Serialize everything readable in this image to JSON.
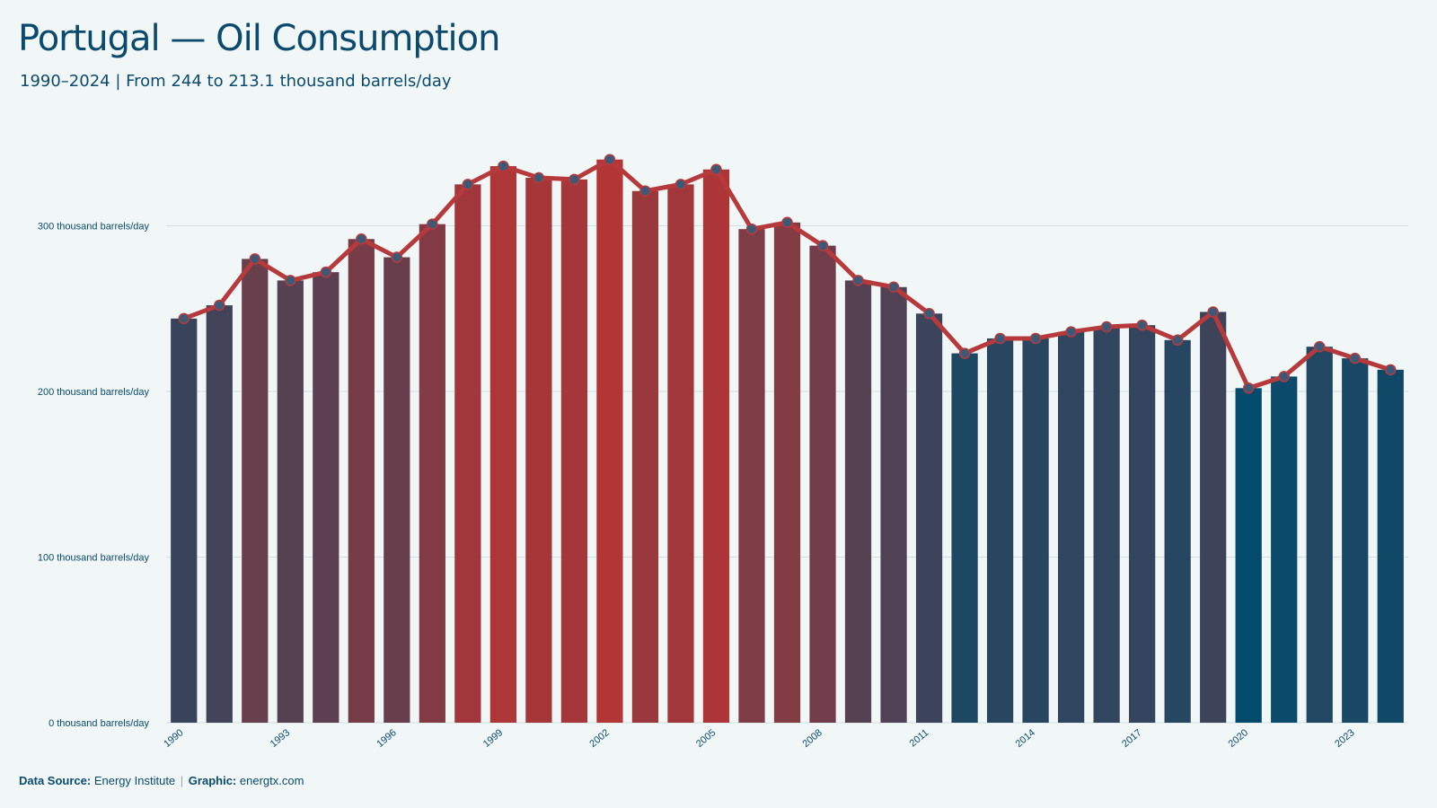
{
  "header": {
    "title": "Portugal — Oil Consumption",
    "subtitle": "1990–2024 | From 244 to 213.1 thousand barrels/day"
  },
  "footer": {
    "source_label": "Data Source:",
    "source_value": "Energy Institute",
    "separator": "|",
    "graphic_label": "Graphic:",
    "graphic_value": "energtx.com"
  },
  "colors": {
    "background": "#f1f7f6",
    "line": "#b63a3c",
    "bar_low": "#024b6d",
    "bar_high": "#b43535",
    "marker_fill": "#3c5a78",
    "grid": "#d4dfe3",
    "text": "#0b4a6e"
  },
  "chart_data": {
    "type": "bar",
    "title": "Portugal — Oil Consumption",
    "ylabel": "",
    "xlabel": "",
    "ylim": [
      0,
      360
    ],
    "grid": true,
    "y_ticks": [
      {
        "value": 0,
        "label": "0 thousand barrels/day"
      },
      {
        "value": 100,
        "label": "100 thousand barrels/day"
      },
      {
        "value": 200,
        "label": "200 thousand barrels/day"
      },
      {
        "value": 300,
        "label": "300 thousand barrels/day"
      }
    ],
    "x_tick_labels": [
      "1990",
      "1993",
      "1996",
      "1999",
      "2002",
      "2005",
      "2008",
      "2011",
      "2014",
      "2017",
      "2020",
      "2023"
    ],
    "categories": [
      1990,
      1991,
      1992,
      1993,
      1994,
      1995,
      1996,
      1997,
      1998,
      1999,
      2000,
      2001,
      2002,
      2003,
      2004,
      2005,
      2006,
      2007,
      2008,
      2009,
      2010,
      2011,
      2012,
      2013,
      2014,
      2015,
      2016,
      2017,
      2018,
      2019,
      2020,
      2021,
      2022,
      2023,
      2024
    ],
    "values": [
      244,
      252,
      280,
      267,
      272,
      292,
      281,
      301,
      325,
      336,
      329,
      328,
      340,
      321,
      325,
      334,
      298,
      302,
      288,
      267,
      263,
      247,
      223,
      232,
      232,
      236,
      239,
      240,
      231,
      248,
      202,
      209,
      227,
      220,
      213.1
    ],
    "overlay": "line-with-markers"
  }
}
